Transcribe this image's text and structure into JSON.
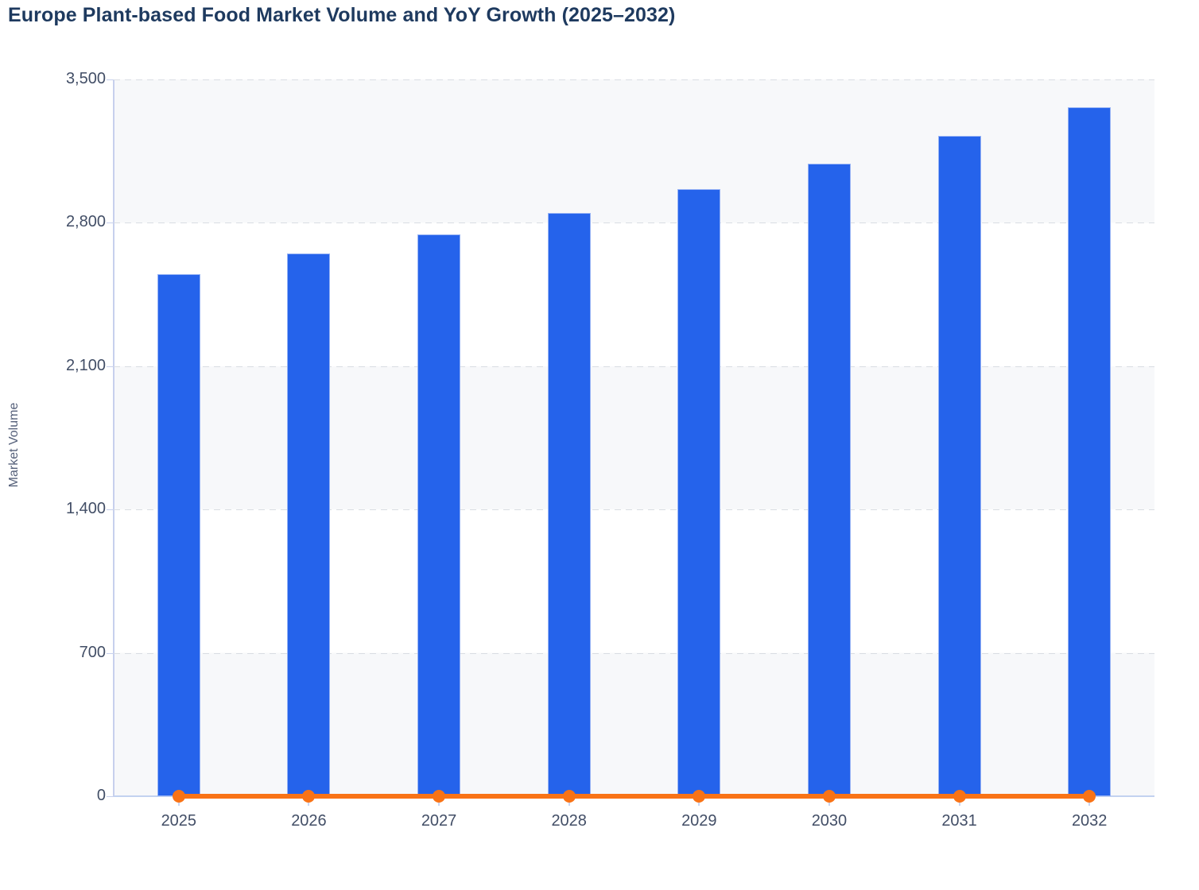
{
  "title": "Europe Plant-based Food Market Volume and YoY Growth (2025–2032)",
  "y_axis": {
    "label": "Market Volume",
    "tick_labels_top_to_bottom": [
      "3,500",
      "2,800",
      "2,100",
      "1,400",
      "700",
      "0"
    ]
  },
  "chart_data": {
    "type": "bar",
    "title": "Europe Plant-based Food Market Volume and YoY Growth (2025–2032)",
    "categories": [
      "2025",
      "2026",
      "2027",
      "2028",
      "2029",
      "2030",
      "2031",
      "2032"
    ],
    "series": [
      {
        "name": "Market Volume",
        "type": "bar",
        "color": "#2563eb",
        "values": [
          2550,
          2650,
          2745,
          2850,
          2965,
          3090,
          3225,
          3365
        ]
      },
      {
        "name": "YoY Growth",
        "type": "line",
        "color": "#f97316",
        "values": [
          0,
          0,
          0,
          0,
          0,
          0,
          0,
          0
        ],
        "note": "Orange line with round markers renders flat on the zero baseline; secondary-axis growth values are not labeled or readable in the image."
      }
    ],
    "xlabel": "",
    "ylabel": "Market Volume",
    "ylim": [
      0,
      3500
    ],
    "y_tick_step": 700,
    "grid": "horizontal-dashed",
    "plot_background": "alternating horizontal bands #f7f8fa / #ffffff",
    "legend": "none"
  },
  "colors": {
    "bar": "#2563eb",
    "line": "#f97316",
    "band_gray": "#f7f8fa",
    "gridline": "#dcdfe4",
    "axis": "#c7d0ed",
    "tick_text": "#424e66",
    "title_text": "#1e3a5f"
  }
}
